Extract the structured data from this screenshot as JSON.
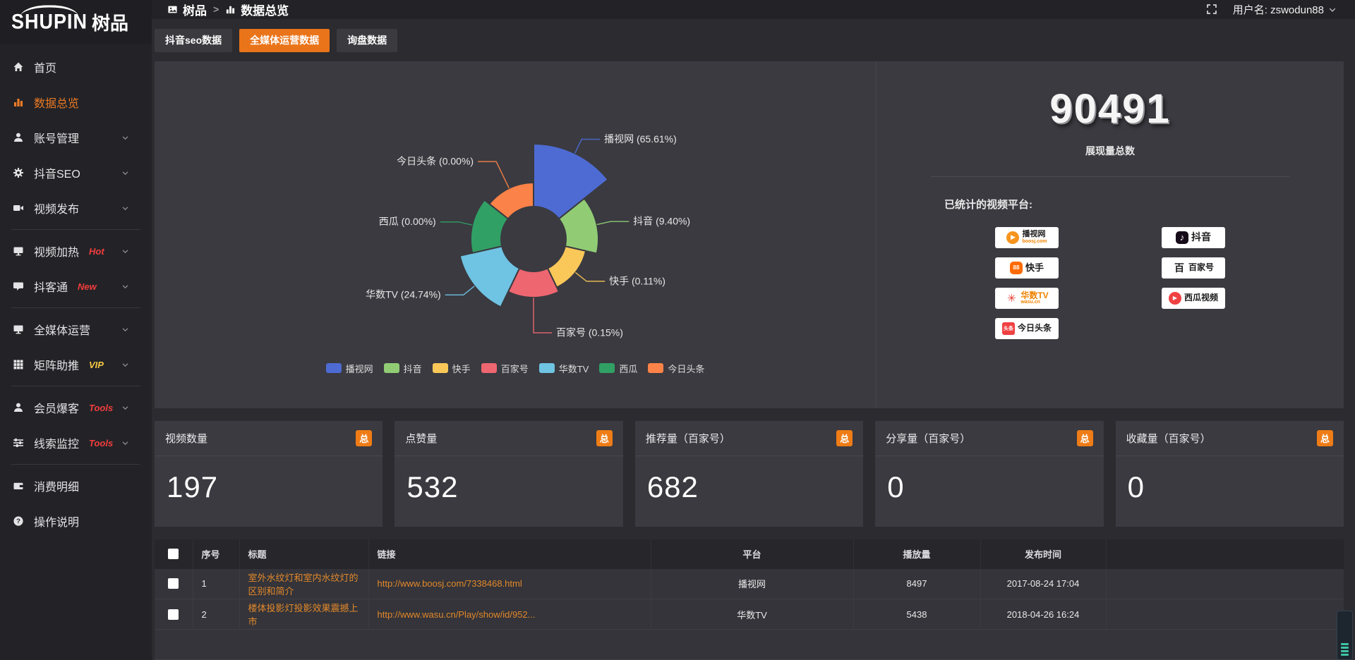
{
  "brand": {
    "logo_en": "SHUPIN",
    "logo_cn": "树品"
  },
  "topbar": {
    "breadcrumb": [
      {
        "id": "shupin",
        "label": "树品",
        "icon": "image"
      },
      {
        "id": "data-overview",
        "label": "数据总览",
        "icon": "bar-chart"
      }
    ],
    "separator": ">",
    "user_label": "用户名: zswodun88"
  },
  "sidebar": {
    "items": [
      {
        "id": "home",
        "label": "首页",
        "icon": "home"
      },
      {
        "id": "data-overview",
        "label": "数据总览",
        "icon": "bar-chart",
        "active": true
      },
      {
        "id": "account-manage",
        "label": "账号管理",
        "icon": "user",
        "chevron": true
      },
      {
        "id": "douyin-seo",
        "label": "抖音SEO",
        "icon": "gear",
        "chevron": true
      },
      {
        "id": "video-publish",
        "label": "视频发布",
        "icon": "video",
        "chevron": true,
        "divider_after": true
      },
      {
        "id": "video-heat",
        "label": "视频加热",
        "icon": "screen",
        "badge": "Hot",
        "badge_color": "#f23d3d",
        "chevron": true
      },
      {
        "id": "douketong",
        "label": "抖客通",
        "icon": "chat",
        "badge": "New",
        "badge_color": "#f23d3d",
        "chevron": true,
        "divider_after": true
      },
      {
        "id": "omni-media",
        "label": "全媒体运营",
        "icon": "monitor",
        "chevron": true
      },
      {
        "id": "matrix-boost",
        "label": "矩阵助推",
        "icon": "grid",
        "badge": "VIP",
        "badge_color": "#f5c842",
        "chevron": true,
        "divider_after": true
      },
      {
        "id": "member-baoke",
        "label": "会员爆客",
        "icon": "user",
        "badge": "Tools",
        "badge_color": "#f23d3d",
        "chevron": true
      },
      {
        "id": "clue-monitor",
        "label": "线索监控",
        "icon": "sliders",
        "badge": "Tools",
        "badge_color": "#f23d3d",
        "chevron": true,
        "divider_after": true
      },
      {
        "id": "spend-detail",
        "label": "消费明细",
        "icon": "wallet"
      },
      {
        "id": "operation-guide",
        "label": "操作说明",
        "icon": "question"
      }
    ]
  },
  "tabs": [
    {
      "id": "douyin-seo-data",
      "label": "抖音seo数据",
      "active": false
    },
    {
      "id": "omni-media-data",
      "label": "全媒体运营数据",
      "active": true
    },
    {
      "id": "inquiry-data",
      "label": "询盘数据",
      "active": false
    }
  ],
  "chart_data": {
    "type": "pie",
    "rose": true,
    "legend_position": "bottom",
    "label_format": "{name} ({percent}%)",
    "series": [
      {
        "name": "播视网",
        "percent": 65.61,
        "color": "#4d6bd3"
      },
      {
        "name": "抖音",
        "percent": 9.4,
        "color": "#91cc75"
      },
      {
        "name": "快手",
        "percent": 0.11,
        "color": "#fac858"
      },
      {
        "name": "百家号",
        "percent": 0.15,
        "color": "#ee6670"
      },
      {
        "name": "华数TV",
        "percent": 24.74,
        "color": "#6fc3e3"
      },
      {
        "name": "西瓜",
        "percent": 0.0,
        "color": "#31a065"
      },
      {
        "name": "今日头条",
        "percent": 0.0,
        "color": "#fb8248"
      }
    ],
    "display_radii": [
      135,
      92,
      76,
      83,
      107,
      89,
      80
    ],
    "inner_radius": 47
  },
  "overview": {
    "total_value": "90491",
    "total_label": "展现量总数",
    "platforms_label": "已统计的视频平台:",
    "platforms_left": [
      {
        "name": "播视网",
        "sub": "boosj.com",
        "style": "boosj"
      },
      {
        "name": "快手",
        "style": "kuaishou"
      },
      {
        "name": "华数TV",
        "sub": "wasu.cn",
        "style": "wasu"
      },
      {
        "name": "今日头条",
        "style": "toutiao"
      }
    ],
    "platforms_right": [
      {
        "name": "抖音",
        "style": "douyin"
      },
      {
        "name": "百家号",
        "style": "baijia"
      },
      {
        "name": "西瓜视频",
        "style": "xigua"
      }
    ]
  },
  "stat_cards": [
    {
      "title": "视频数量",
      "badge": "总",
      "value": "197"
    },
    {
      "title": "点赞量",
      "badge": "总",
      "value": "532"
    },
    {
      "title": "推荐量（百家号）",
      "badge": "总",
      "value": "682"
    },
    {
      "title": "分享量（百家号）",
      "badge": "总",
      "value": "0"
    },
    {
      "title": "收藏量（百家号）",
      "badge": "总",
      "value": "0"
    }
  ],
  "table": {
    "headers": [
      "序号",
      "标题",
      "链接",
      "平台",
      "播放量",
      "发布时间"
    ],
    "rows": [
      {
        "index": "1",
        "title": "室外水纹灯和室内水纹灯的区别和简介",
        "link": "http://www.boosj.com/7338468.html",
        "platform": "播视网",
        "plays": "8497",
        "time": "2017-08-24 17:04"
      },
      {
        "index": "2",
        "title": "楼体投影灯投影效果震撼上市",
        "link": "http://www.wasu.cn/Play/show/id/952...",
        "platform": "华数TV",
        "plays": "5438",
        "time": "2018-04-26 16:24"
      }
    ]
  },
  "colors": {
    "accent": "#ea7419",
    "badge_orange": "#ef7c16",
    "link_orange": "#e2882a"
  }
}
